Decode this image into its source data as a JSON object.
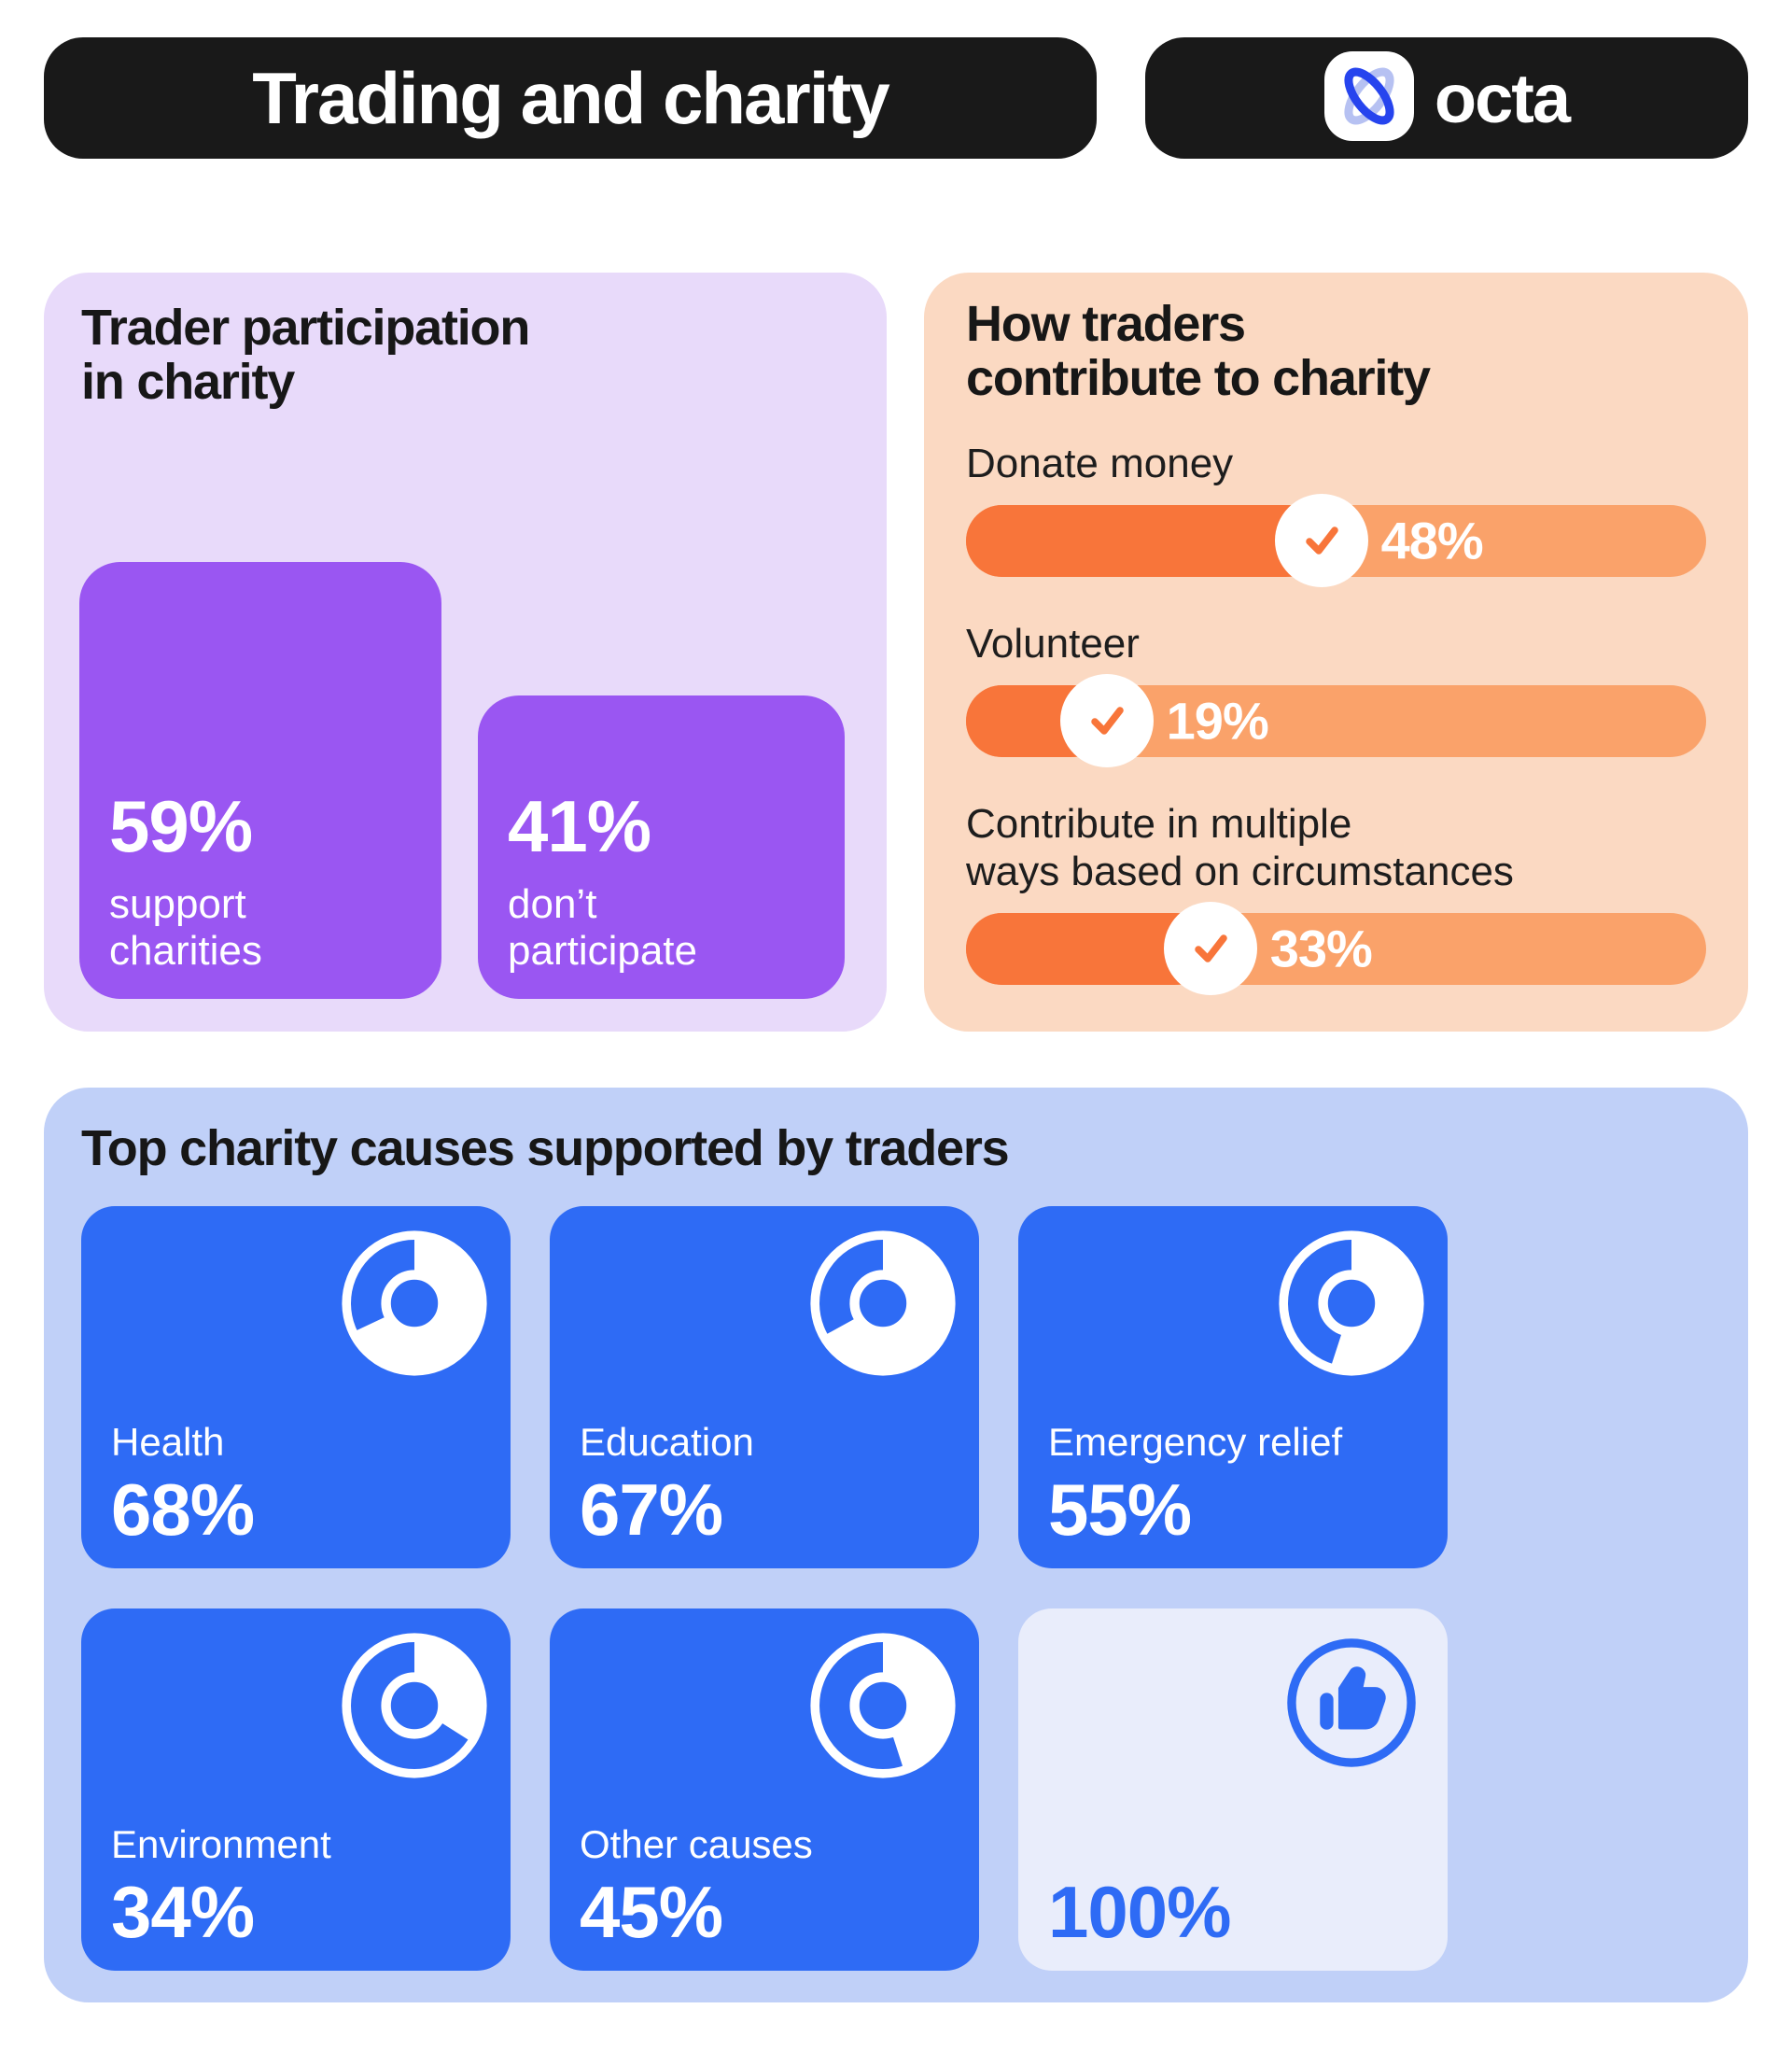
{
  "header": {
    "title": "Trading and charity",
    "brand": "octa"
  },
  "colors": {
    "black_pill": "#191919",
    "purple_panel": "#E8DAFA",
    "purple_bar": "#9A56F2",
    "orange_panel": "#FBD9C2",
    "orange_track": "#FAA26A",
    "orange_fill": "#F8753A",
    "blue_panel": "#C0D0F8",
    "card_blue": "#2E6BF5",
    "card_light": "#E9EDFB",
    "white": "#ffffff",
    "logo_blue_dark": "#2644EE",
    "logo_blue_light": "#B6C1F2"
  },
  "participation": {
    "title_line1": "Trader participation",
    "title_line2": "in charity",
    "bars": [
      {
        "value": 59,
        "value_label": "59%",
        "label_line1": "support",
        "label_line2": "charities"
      },
      {
        "value": 41,
        "value_label": "41%",
        "label_line1": "don’t",
        "label_line2": "participate"
      }
    ]
  },
  "contribution": {
    "title_line1": "How traders",
    "title_line2": "contribute to charity",
    "items": [
      {
        "label_line1": "Donate money",
        "label_line2": "",
        "value": 48,
        "value_label": "48%"
      },
      {
        "label_line1": "Volunteer",
        "label_line2": "",
        "value": 19,
        "value_label": "19%"
      },
      {
        "label_line1": "Contribute in multiple",
        "label_line2": "ways based on circumstances",
        "value": 33,
        "value_label": "33%"
      }
    ]
  },
  "causes": {
    "title": "Top charity causes supported by traders",
    "cards": [
      {
        "label": "Health",
        "value": 68,
        "value_label": "68%"
      },
      {
        "label": "Education",
        "value": 67,
        "value_label": "67%"
      },
      {
        "label": "Emergency relief",
        "value": 55,
        "value_label": "55%"
      },
      {
        "label": "Environment",
        "value": 34,
        "value_label": "34%"
      },
      {
        "label": "Other causes",
        "value": 45,
        "value_label": "45%"
      },
      {
        "label": "",
        "value": 100,
        "value_label": "100%"
      }
    ]
  },
  "chart_data": [
    {
      "type": "bar",
      "title": "Trader participation in charity",
      "categories": [
        "support charities",
        "don’t participate"
      ],
      "values": [
        59,
        41
      ],
      "unit": "%",
      "orientation": "vertical",
      "bar_color": "#9A56F2"
    },
    {
      "type": "bar",
      "title": "How traders contribute to charity",
      "categories": [
        "Donate money",
        "Volunteer",
        "Contribute in multiple ways based on circumstances"
      ],
      "values": [
        48,
        19,
        33
      ],
      "unit": "%",
      "orientation": "horizontal",
      "bar_color": "#F8753A",
      "track_color": "#FAA26A"
    },
    {
      "type": "pie",
      "title": "Top charity causes supported by traders",
      "categories": [
        "Health",
        "Education",
        "Emergency relief",
        "Environment",
        "Other causes",
        ""
      ],
      "values": [
        68,
        67,
        55,
        34,
        45,
        100
      ],
      "unit": "%",
      "note": "each value rendered as an individual white donut on blue card; 100% card shows thumbs-up"
    }
  ]
}
